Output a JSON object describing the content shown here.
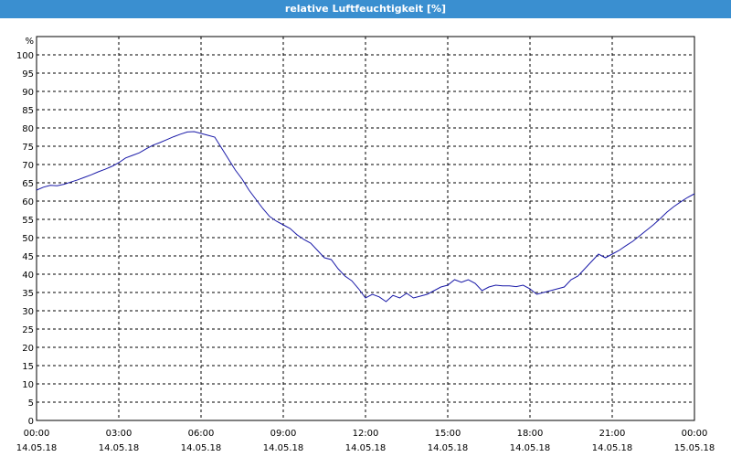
{
  "window": {
    "title": "relative Luftfeuchtigkeit [%]"
  },
  "colors": {
    "titlebar": "#3a8fd0",
    "line": "#1a1aa8",
    "grid": "#000000",
    "background": "#ffffff"
  },
  "chart_data": {
    "type": "line",
    "title": "relative Luftfeuchtigkeit [%]",
    "ylabel": "%",
    "xlabel": "",
    "ylim": [
      0,
      105
    ],
    "xlim": [
      0,
      24
    ],
    "grid": true,
    "legend": "none",
    "y_ticks": [
      0,
      5,
      10,
      15,
      20,
      25,
      30,
      35,
      40,
      45,
      50,
      55,
      60,
      65,
      70,
      75,
      80,
      85,
      90,
      95,
      100
    ],
    "x_ticks": [
      {
        "x": 0,
        "time": "00:00",
        "date": "14.05.18"
      },
      {
        "x": 3,
        "time": "03:00",
        "date": "14.05.18"
      },
      {
        "x": 6,
        "time": "06:00",
        "date": "14.05.18"
      },
      {
        "x": 9,
        "time": "09:00",
        "date": "14.05.18"
      },
      {
        "x": 12,
        "time": "12:00",
        "date": "14.05.18"
      },
      {
        "x": 15,
        "time": "15:00",
        "date": "14.05.18"
      },
      {
        "x": 18,
        "time": "18:00",
        "date": "14.05.18"
      },
      {
        "x": 21,
        "time": "21:00",
        "date": "14.05.18"
      },
      {
        "x": 24,
        "time": "00:00",
        "date": "15.05.18"
      }
    ],
    "series": [
      {
        "color": "#1a1aa8",
        "x": [
          0,
          0.25,
          0.5,
          0.75,
          1.0,
          1.25,
          1.5,
          1.75,
          2.0,
          2.25,
          2.5,
          2.75,
          3.0,
          3.25,
          3.5,
          3.75,
          4.0,
          4.25,
          4.5,
          4.75,
          5.0,
          5.25,
          5.5,
          5.75,
          6.0,
          6.25,
          6.5,
          6.75,
          7.0,
          7.25,
          7.5,
          7.75,
          8.0,
          8.25,
          8.5,
          8.75,
          9.0,
          9.25,
          9.5,
          9.75,
          10.0,
          10.25,
          10.5,
          10.75,
          11.0,
          11.25,
          11.5,
          11.75,
          12.0,
          12.25,
          12.5,
          12.75,
          13.0,
          13.25,
          13.5,
          13.75,
          14.0,
          14.25,
          14.5,
          14.75,
          15.0,
          15.25,
          15.5,
          15.75,
          16.0,
          16.25,
          16.5,
          16.75,
          17.0,
          17.25,
          17.5,
          17.75,
          18.0,
          18.25,
          18.5,
          18.75,
          19.0,
          19.25,
          19.5,
          19.75,
          20.0,
          20.25,
          20.5,
          20.75,
          21.0,
          21.25,
          21.5,
          21.75,
          22.0,
          22.25,
          22.5,
          22.75,
          23.0,
          23.25,
          23.5,
          23.75,
          24.0
        ],
        "y": [
          63,
          63.8,
          64.3,
          64.2,
          64.6,
          65.2,
          65.8,
          66.5,
          67.2,
          68.0,
          68.7,
          69.5,
          70.5,
          71.8,
          72.5,
          73.2,
          74.3,
          75.3,
          76.0,
          76.8,
          77.6,
          78.3,
          78.9,
          79.0,
          78.5,
          78.0,
          77.5,
          74.5,
          71.5,
          68.5,
          66.0,
          63.0,
          60.5,
          58.0,
          55.8,
          54.5,
          53.5,
          52.5,
          50.8,
          49.5,
          48.5,
          46.5,
          44.5,
          44.0,
          41.5,
          39.5,
          38.2,
          36.0,
          33.5,
          34.5,
          33.8,
          32.5,
          34.2,
          33.5,
          34.8,
          33.5,
          34.0,
          34.5,
          35.5,
          36.5,
          37.0,
          38.5,
          37.8,
          38.5,
          37.5,
          35.5,
          36.5,
          37.0,
          36.8,
          36.8,
          36.6,
          37.0,
          36.0,
          34.5,
          35.0,
          35.5,
          36.0,
          36.5,
          38.5,
          39.5,
          41.5,
          43.5,
          45.5,
          44.5,
          45.5,
          46.5,
          47.8,
          49.0,
          50.5,
          52.0,
          53.5,
          55.2,
          57.0,
          58.5,
          59.8,
          61.0,
          62.0
        ]
      }
    ]
  }
}
